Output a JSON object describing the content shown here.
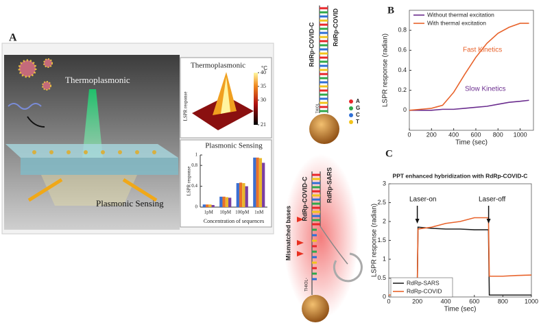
{
  "panel_a": {
    "label": "A",
    "beam_label": "Thermoplasmonic",
    "sensing_label": "Plasmonic Sensing",
    "heatmap": {
      "title": "Thermoplasmonic",
      "ylabel": "LSPR response",
      "unit": "°C",
      "clim": [
        21,
        40
      ],
      "ticks": [
        21,
        30,
        35,
        40
      ]
    }
  },
  "dna_top": {
    "strand_1": "RdRp-COVID-C",
    "strand_2": "RdRp-COVID",
    "anchor": "THIOL",
    "bases": [
      "A",
      "G",
      "C",
      "T"
    ],
    "base_colors": [
      "#e8262a",
      "#2fa84a",
      "#2f6fd6",
      "#f2c31b"
    ]
  },
  "dna_bottom": {
    "note": "Mismatched bases",
    "strand_1": "RdRp-COVID-C",
    "strand_2": "RdRp-SARS",
    "anchor": "THIOL-"
  },
  "chart_data": [
    {
      "type": "line",
      "panel": "B",
      "xlabel": "Time (sec)",
      "ylabel": "LSPR response (radian)",
      "x": [
        0,
        100,
        200,
        300,
        400,
        500,
        600,
        700,
        800,
        900,
        1000,
        1080
      ],
      "series": [
        {
          "name": "Without thermal excitation",
          "color": "#6a2c8e",
          "values": [
            0,
            0,
            0,
            0.01,
            0.01,
            0.02,
            0.03,
            0.04,
            0.06,
            0.08,
            0.09,
            0.1
          ]
        },
        {
          "name": "With thermal excitation",
          "color": "#e8622a",
          "values": [
            0,
            0.01,
            0.02,
            0.05,
            0.18,
            0.36,
            0.53,
            0.67,
            0.77,
            0.83,
            0.87,
            0.87
          ]
        }
      ],
      "annotations": [
        "Fast Kinetics",
        "Slow Kinetics"
      ],
      "xlim": [
        0,
        1120
      ],
      "ylim": [
        -0.2,
        1.0
      ],
      "xticks": [
        0,
        200,
        400,
        600,
        800,
        1000
      ],
      "yticks": [
        0,
        0.2,
        0.4,
        0.6,
        0.8
      ],
      "legend": "upper left"
    },
    {
      "type": "line",
      "panel": "C",
      "title": "PPT enhanced hybridization with RdRp-COVID-C",
      "xlabel": "Time (sec)",
      "ylabel": "LSPR response (radian)",
      "x": [
        0,
        100,
        199,
        205,
        300,
        400,
        500,
        600,
        699,
        705,
        800,
        900,
        1000
      ],
      "series": [
        {
          "name": "RdRp-SARS",
          "color": "#222222",
          "values": [
            0.05,
            0.05,
            0.05,
            1.85,
            1.82,
            1.8,
            1.8,
            1.78,
            1.78,
            0.05,
            0.05,
            0.05,
            0.05
          ]
        },
        {
          "name": "RdRp-COVID",
          "color": "#e8622a",
          "values": [
            0.05,
            0.05,
            0.05,
            1.8,
            1.85,
            1.95,
            2.0,
            2.1,
            2.1,
            0.55,
            0.55,
            0.57,
            0.58
          ]
        }
      ],
      "annotations": [
        "Laser-on",
        "Laser-off"
      ],
      "xlim": [
        0,
        1000
      ],
      "ylim": [
        0,
        3
      ],
      "xticks": [
        0,
        200,
        400,
        600,
        800,
        1000
      ],
      "yticks": [
        0,
        0.5,
        1,
        1.5,
        2,
        2.5,
        3
      ],
      "legend": "lower left"
    },
    {
      "type": "bar",
      "title": "Plasmonic Sensing",
      "xlabel": "Concentration of sequences",
      "ylabel": "LSPR response",
      "categories": [
        "1pM",
        "10pM",
        "100pM",
        "1nM"
      ],
      "series": [
        {
          "color": "#3b6fd1",
          "values": [
            0.05,
            0.2,
            0.46,
            0.95
          ]
        },
        {
          "color": "#e8712a",
          "values": [
            0.05,
            0.2,
            0.47,
            0.95
          ]
        },
        {
          "color": "#e9b82b",
          "values": [
            0.05,
            0.19,
            0.46,
            0.94
          ]
        },
        {
          "color": "#7b3fa0",
          "values": [
            0.04,
            0.18,
            0.4,
            0.85
          ]
        }
      ],
      "ylim": [
        0,
        1
      ],
      "yticks": [
        0,
        0.4,
        0.8,
        1
      ]
    }
  ]
}
